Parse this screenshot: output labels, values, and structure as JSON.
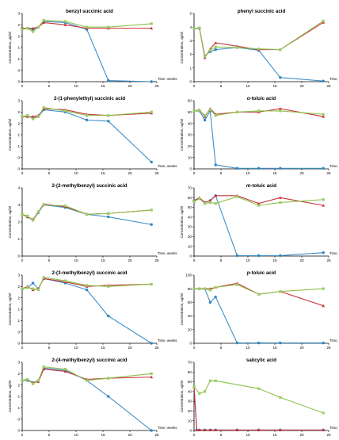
{
  "colors": {
    "blue": "#3f8fc8",
    "red": "#c8323a",
    "green": "#8bc34a",
    "green_fill": "#9ccc65",
    "blue_fill": "#2e86c1"
  },
  "chart_data": [
    {
      "id": "benzyl",
      "type": "line",
      "title": "benzyl succinic acid",
      "title_italic_prefix": "",
      "ylabel": "Concentration, μg/ml",
      "xlabel": "",
      "xlim": [
        0,
        25
      ],
      "xticks": [
        0,
        5,
        10,
        15,
        20,
        25
      ],
      "ylim": [
        0,
        3
      ],
      "yticks": [
        0,
        0.5,
        1,
        1.5,
        2,
        2.5,
        3
      ],
      "yticklabels": [
        "0",
        "0",
        "1",
        "1",
        "2",
        "2",
        "3"
      ],
      "series": [
        {
          "color": "blue",
          "marker": "circle",
          "x": [
            0,
            1,
            2,
            3,
            4,
            8,
            12,
            16,
            24
          ],
          "y": [
            2.35,
            2.35,
            2.3,
            2.4,
            2.65,
            2.6,
            2.3,
            0.05,
            0.0
          ]
        },
        {
          "color": "red",
          "marker": "triangle",
          "x": [
            0,
            1,
            2,
            3,
            4,
            8,
            12,
            16,
            24
          ],
          "y": [
            2.35,
            2.35,
            2.35,
            2.4,
            2.6,
            2.5,
            2.35,
            2.35,
            2.35
          ]
        },
        {
          "color": "green",
          "marker": "square",
          "x": [
            0,
            1,
            2,
            3,
            4,
            8,
            12,
            16,
            24
          ],
          "y": [
            2.3,
            2.35,
            2.2,
            2.4,
            2.7,
            2.65,
            2.4,
            2.4,
            2.55
          ]
        }
      ]
    },
    {
      "id": "phenyl",
      "type": "line",
      "title": "phenyl succinic acid",
      "title_italic_prefix": "",
      "ylabel": "Concentration, ug/ml",
      "xlabel": "",
      "xlim": [
        0,
        25
      ],
      "xticks": [
        0,
        5,
        10,
        15,
        20,
        25
      ],
      "ylim": [
        0,
        5
      ],
      "yticks": [
        0,
        1,
        2,
        3,
        4,
        5
      ],
      "yticklabels": [
        "0",
        "1",
        "2",
        "3",
        "4",
        "5"
      ],
      "series": [
        {
          "color": "blue",
          "marker": "circle",
          "x": [
            0,
            1,
            2,
            3,
            4,
            8,
            12,
            16,
            24
          ],
          "y": [
            3.9,
            3.9,
            1.9,
            2.2,
            2.35,
            2.5,
            2.3,
            0.3,
            0.05
          ]
        },
        {
          "color": "red",
          "marker": "triangle",
          "x": [
            0,
            1,
            2,
            3,
            4,
            8,
            12,
            16,
            24
          ],
          "y": [
            3.9,
            3.95,
            1.75,
            2.4,
            2.85,
            2.6,
            2.35,
            2.35,
            4.35
          ]
        },
        {
          "color": "green",
          "marker": "square",
          "x": [
            0,
            1,
            2,
            3,
            4,
            8,
            12,
            16,
            24
          ],
          "y": [
            3.9,
            3.95,
            1.85,
            2.3,
            2.55,
            2.5,
            2.4,
            2.35,
            4.45
          ]
        }
      ]
    },
    {
      "id": "phenylethyl",
      "type": "line",
      "title": "2-(1-phenylethyl) succinic acid",
      "title_italic_prefix": "",
      "ylabel": "Concentration, ug/ml",
      "xlabel": "",
      "xlim": [
        0,
        25
      ],
      "xticks": [
        0,
        5,
        10,
        15,
        20,
        25
      ],
      "ylim": [
        0,
        3
      ],
      "yticks": [
        0,
        0.5,
        1,
        1.5,
        2,
        2.5,
        3
      ],
      "yticklabels": [
        "0",
        "0",
        "1",
        "1",
        "2",
        "2",
        "3"
      ],
      "series": [
        {
          "color": "blue",
          "marker": "circle",
          "x": [
            0,
            1,
            2,
            3,
            4,
            8,
            12,
            16,
            24
          ],
          "y": [
            2.3,
            2.3,
            2.25,
            2.3,
            2.6,
            2.5,
            2.15,
            2.1,
            0.3
          ]
        },
        {
          "color": "red",
          "marker": "triangle",
          "x": [
            0,
            1,
            2,
            3,
            4,
            8,
            12,
            16,
            24
          ],
          "y": [
            2.3,
            2.3,
            2.3,
            2.35,
            2.65,
            2.6,
            2.4,
            2.35,
            2.45
          ]
        },
        {
          "color": "green",
          "marker": "square",
          "x": [
            0,
            1,
            2,
            3,
            4,
            8,
            12,
            16,
            24
          ],
          "y": [
            2.3,
            2.35,
            2.2,
            2.3,
            2.7,
            2.55,
            2.35,
            2.35,
            2.5
          ]
        }
      ]
    },
    {
      "id": "otoluic",
      "type": "line",
      "title": "-toluic acid",
      "title_italic_prefix": "o",
      "ylabel": "Concentration, ug/ml",
      "xlabel": "",
      "xlim": [
        0,
        25
      ],
      "xticks": [
        0,
        5,
        10,
        15,
        20,
        25
      ],
      "ylim": [
        0,
        60
      ],
      "yticks": [
        0,
        10,
        20,
        30,
        40,
        50,
        60
      ],
      "yticklabels": [
        "0",
        "10",
        "20",
        "30",
        "40",
        "50",
        "60"
      ],
      "series": [
        {
          "color": "blue",
          "marker": "circle",
          "x": [
            0,
            1,
            2,
            3,
            4,
            8,
            12,
            16,
            24
          ],
          "y": [
            51,
            51,
            43,
            51,
            3.5,
            0.5,
            0.5,
            0.5,
            0.5
          ]
        },
        {
          "color": "red",
          "marker": "triangle",
          "x": [
            0,
            1,
            2,
            3,
            4,
            8,
            12,
            16,
            24
          ],
          "y": [
            51,
            52,
            46,
            53,
            48,
            50,
            50,
            53,
            46
          ]
        },
        {
          "color": "green",
          "marker": "square",
          "x": [
            0,
            1,
            2,
            3,
            4,
            8,
            12,
            16,
            24
          ],
          "y": [
            51,
            51.5,
            47,
            52,
            47,
            50,
            51,
            51,
            48
          ]
        }
      ]
    },
    {
      "id": "methylbenzyl2",
      "type": "line",
      "title": "2-(2-methylbenzyl) succinic acid",
      "title_italic_prefix": "",
      "ylabel": "Concentration, ug/ml",
      "xlabel": "",
      "xlim": [
        0,
        25
      ],
      "xticks": [
        0,
        5,
        10,
        15,
        20,
        25
      ],
      "ylim": [
        0,
        4
      ],
      "yticks": [
        0,
        1,
        2,
        3,
        4
      ],
      "yticklabels": [
        "0",
        "1",
        "2",
        "3",
        "4"
      ],
      "series": [
        {
          "color": "blue",
          "marker": "circle",
          "x": [
            0,
            1,
            2,
            3,
            4,
            8,
            12,
            16,
            24
          ],
          "y": [
            2.45,
            2.3,
            2.1,
            2.55,
            3.0,
            2.85,
            2.45,
            2.3,
            1.85
          ]
        },
        {
          "color": "red",
          "marker": "triangle",
          "x": [
            0,
            1,
            2,
            3,
            4,
            8,
            12,
            16,
            24
          ],
          "y": [
            2.45,
            2.3,
            2.15,
            2.6,
            3.05,
            2.9,
            2.45,
            2.5,
            2.7
          ]
        },
        {
          "color": "green",
          "marker": "square",
          "x": [
            0,
            1,
            2,
            3,
            4,
            8,
            12,
            16,
            24
          ],
          "y": [
            2.45,
            2.35,
            2.1,
            2.6,
            3.0,
            2.95,
            2.45,
            2.5,
            2.7
          ]
        }
      ]
    },
    {
      "id": "mtoluic",
      "type": "line",
      "title": "-toluic acid",
      "title_italic_prefix": "m",
      "ylabel": "Concentration, ug/ml",
      "xlabel": "",
      "xlim": [
        0,
        25
      ],
      "xticks": [
        0,
        5,
        10,
        15,
        20,
        25
      ],
      "ylim": [
        0,
        70
      ],
      "yticks": [
        0,
        10,
        20,
        30,
        40,
        50,
        60,
        70
      ],
      "yticklabels": [
        "0",
        "10",
        "20",
        "30",
        "40",
        "50",
        "60",
        "70"
      ],
      "series": [
        {
          "color": "blue",
          "marker": "circle",
          "x": [
            0,
            1,
            2,
            3,
            4,
            8,
            12,
            16,
            24
          ],
          "y": [
            57,
            59,
            55,
            57,
            62,
            0.5,
            0.5,
            0.5,
            3.5
          ]
        },
        {
          "color": "red",
          "marker": "triangle",
          "x": [
            0,
            1,
            2,
            3,
            4,
            8,
            12,
            16,
            24
          ],
          "y": [
            57,
            60,
            55,
            57,
            62,
            62,
            54,
            60,
            52
          ]
        },
        {
          "color": "green",
          "marker": "square",
          "x": [
            0,
            1,
            2,
            3,
            4,
            8,
            12,
            16,
            24
          ],
          "y": [
            56,
            59,
            54,
            55,
            54,
            61,
            52,
            55,
            58
          ]
        }
      ]
    },
    {
      "id": "methylbenzyl3",
      "type": "line",
      "title": "2-(3-methylbenzyl) succinic acid",
      "title_italic_prefix": "",
      "ylabel": "Concentration, ug/ml",
      "xlabel": "",
      "xlim": [
        0,
        25
      ],
      "xticks": [
        0,
        5,
        10,
        15,
        20,
        25
      ],
      "ylim": [
        0,
        3
      ],
      "yticks": [
        0,
        0.5,
        1,
        1.5,
        2,
        2.5,
        3
      ],
      "yticklabels": [
        "0",
        "0",
        "1",
        "1",
        "2",
        "2",
        "3"
      ],
      "series": [
        {
          "color": "blue",
          "marker": "circle",
          "x": [
            0,
            1,
            2,
            3,
            4,
            8,
            12,
            16,
            24
          ],
          "y": [
            2.4,
            2.45,
            2.65,
            2.4,
            2.85,
            2.65,
            2.35,
            1.2,
            0.0
          ]
        },
        {
          "color": "red",
          "marker": "triangle",
          "x": [
            0,
            1,
            2,
            3,
            4,
            8,
            12,
            16,
            24
          ],
          "y": [
            2.4,
            2.5,
            2.35,
            2.4,
            2.85,
            2.7,
            2.5,
            2.55,
            2.6
          ]
        },
        {
          "color": "green",
          "marker": "square",
          "x": [
            0,
            1,
            2,
            3,
            4,
            8,
            12,
            16,
            24
          ],
          "y": [
            2.4,
            2.45,
            2.4,
            2.35,
            2.9,
            2.75,
            2.55,
            2.5,
            2.6
          ]
        }
      ]
    },
    {
      "id": "ptoluic",
      "type": "line",
      "title": "-toluic acid",
      "title_italic_prefix": "p",
      "ylabel": "Concentration, ug/ml",
      "xlabel": "",
      "xlim": [
        0,
        25
      ],
      "xticks": [
        0,
        5,
        10,
        15,
        20,
        25
      ],
      "ylim": [
        0,
        100
      ],
      "yticks": [
        0,
        20,
        40,
        60,
        80,
        100
      ],
      "yticklabels": [
        "0",
        "20",
        "40",
        "60",
        "80",
        "100"
      ],
      "series": [
        {
          "color": "blue",
          "marker": "circle",
          "x": [
            0,
            1,
            2,
            3,
            4,
            8,
            12,
            16,
            24
          ],
          "y": [
            80,
            80,
            80,
            60,
            68,
            0.5,
            0.5,
            0.5,
            0.5
          ]
        },
        {
          "color": "red",
          "marker": "triangle",
          "x": [
            0,
            1,
            2,
            3,
            4,
            8,
            12,
            16,
            24
          ],
          "y": [
            80,
            80,
            80,
            80,
            82,
            88,
            72,
            76,
            55
          ]
        },
        {
          "color": "green",
          "marker": "square",
          "x": [
            0,
            1,
            2,
            3,
            4,
            8,
            12,
            16,
            24
          ],
          "y": [
            80,
            80,
            80,
            78,
            82,
            86,
            72,
            76,
            80
          ]
        }
      ]
    },
    {
      "id": "methylbenzyl4",
      "type": "line",
      "title": "2-(4-methylbenzyl) succinic acid",
      "title_italic_prefix": "",
      "ylabel": "Concentration, ug/ml",
      "xlabel": "",
      "xlim": [
        0,
        25
      ],
      "xticks": [
        0,
        5,
        10,
        15,
        20,
        25
      ],
      "ylim": [
        0,
        3
      ],
      "yticks": [
        0,
        0.5,
        1,
        1.5,
        2,
        2.5,
        3
      ],
      "yticklabels": [
        "0",
        "0",
        "1",
        "1",
        "2",
        "2",
        "3"
      ],
      "series": [
        {
          "color": "blue",
          "marker": "circle",
          "x": [
            0,
            1,
            2,
            3,
            4,
            8,
            12,
            16,
            24
          ],
          "y": [
            2.2,
            2.2,
            2.1,
            2.2,
            2.75,
            2.65,
            2.2,
            1.5,
            0.0
          ]
        },
        {
          "color": "red",
          "marker": "triangle",
          "x": [
            0,
            1,
            2,
            3,
            4,
            8,
            12,
            16,
            24
          ],
          "y": [
            2.2,
            2.25,
            2.1,
            2.15,
            2.7,
            2.6,
            2.25,
            2.3,
            2.35
          ]
        },
        {
          "color": "green",
          "marker": "square",
          "x": [
            0,
            1,
            2,
            3,
            4,
            8,
            12,
            16,
            24
          ],
          "y": [
            2.2,
            2.25,
            2.05,
            2.2,
            2.8,
            2.7,
            2.2,
            2.3,
            2.5
          ]
        }
      ]
    },
    {
      "id": "salicylic",
      "type": "line",
      "title": "salicylic acid",
      "title_italic_prefix": "",
      "ylabel": "Concentration, ug/ml",
      "xlabel": "Time, weeks",
      "xlim": [
        0,
        25
      ],
      "xticks": [
        0,
        5,
        10,
        15,
        20,
        25
      ],
      "ylim": [
        0,
        70
      ],
      "yticks": [
        0,
        10,
        20,
        30,
        40,
        50,
        60,
        70
      ],
      "yticklabels": [
        "0",
        "10",
        "20",
        "30",
        "40",
        "50",
        "60",
        "70"
      ],
      "series": [
        {
          "color": "blue",
          "marker": "circle",
          "x": [
            0,
            0.5,
            1,
            2,
            3,
            4,
            8,
            12,
            16,
            24
          ],
          "y": [
            45,
            0.5,
            0.5,
            0.5,
            0.5,
            0.5,
            0.5,
            0.5,
            0.5,
            0.5
          ]
        },
        {
          "color": "red",
          "marker": "triangle",
          "x": [
            0,
            0.5,
            1,
            2,
            3,
            4,
            8,
            12,
            16,
            24
          ],
          "y": [
            45,
            0.5,
            0.5,
            0.5,
            0.5,
            0.5,
            0.5,
            0.5,
            0.5,
            0.5
          ]
        },
        {
          "color": "green",
          "marker": "square",
          "x": [
            0,
            1,
            2,
            3,
            4,
            12,
            16,
            24
          ],
          "y": [
            45,
            38,
            40,
            51,
            51,
            43,
            34,
            18
          ]
        }
      ]
    }
  ],
  "xaxis_unit_label": "Time, weeks"
}
